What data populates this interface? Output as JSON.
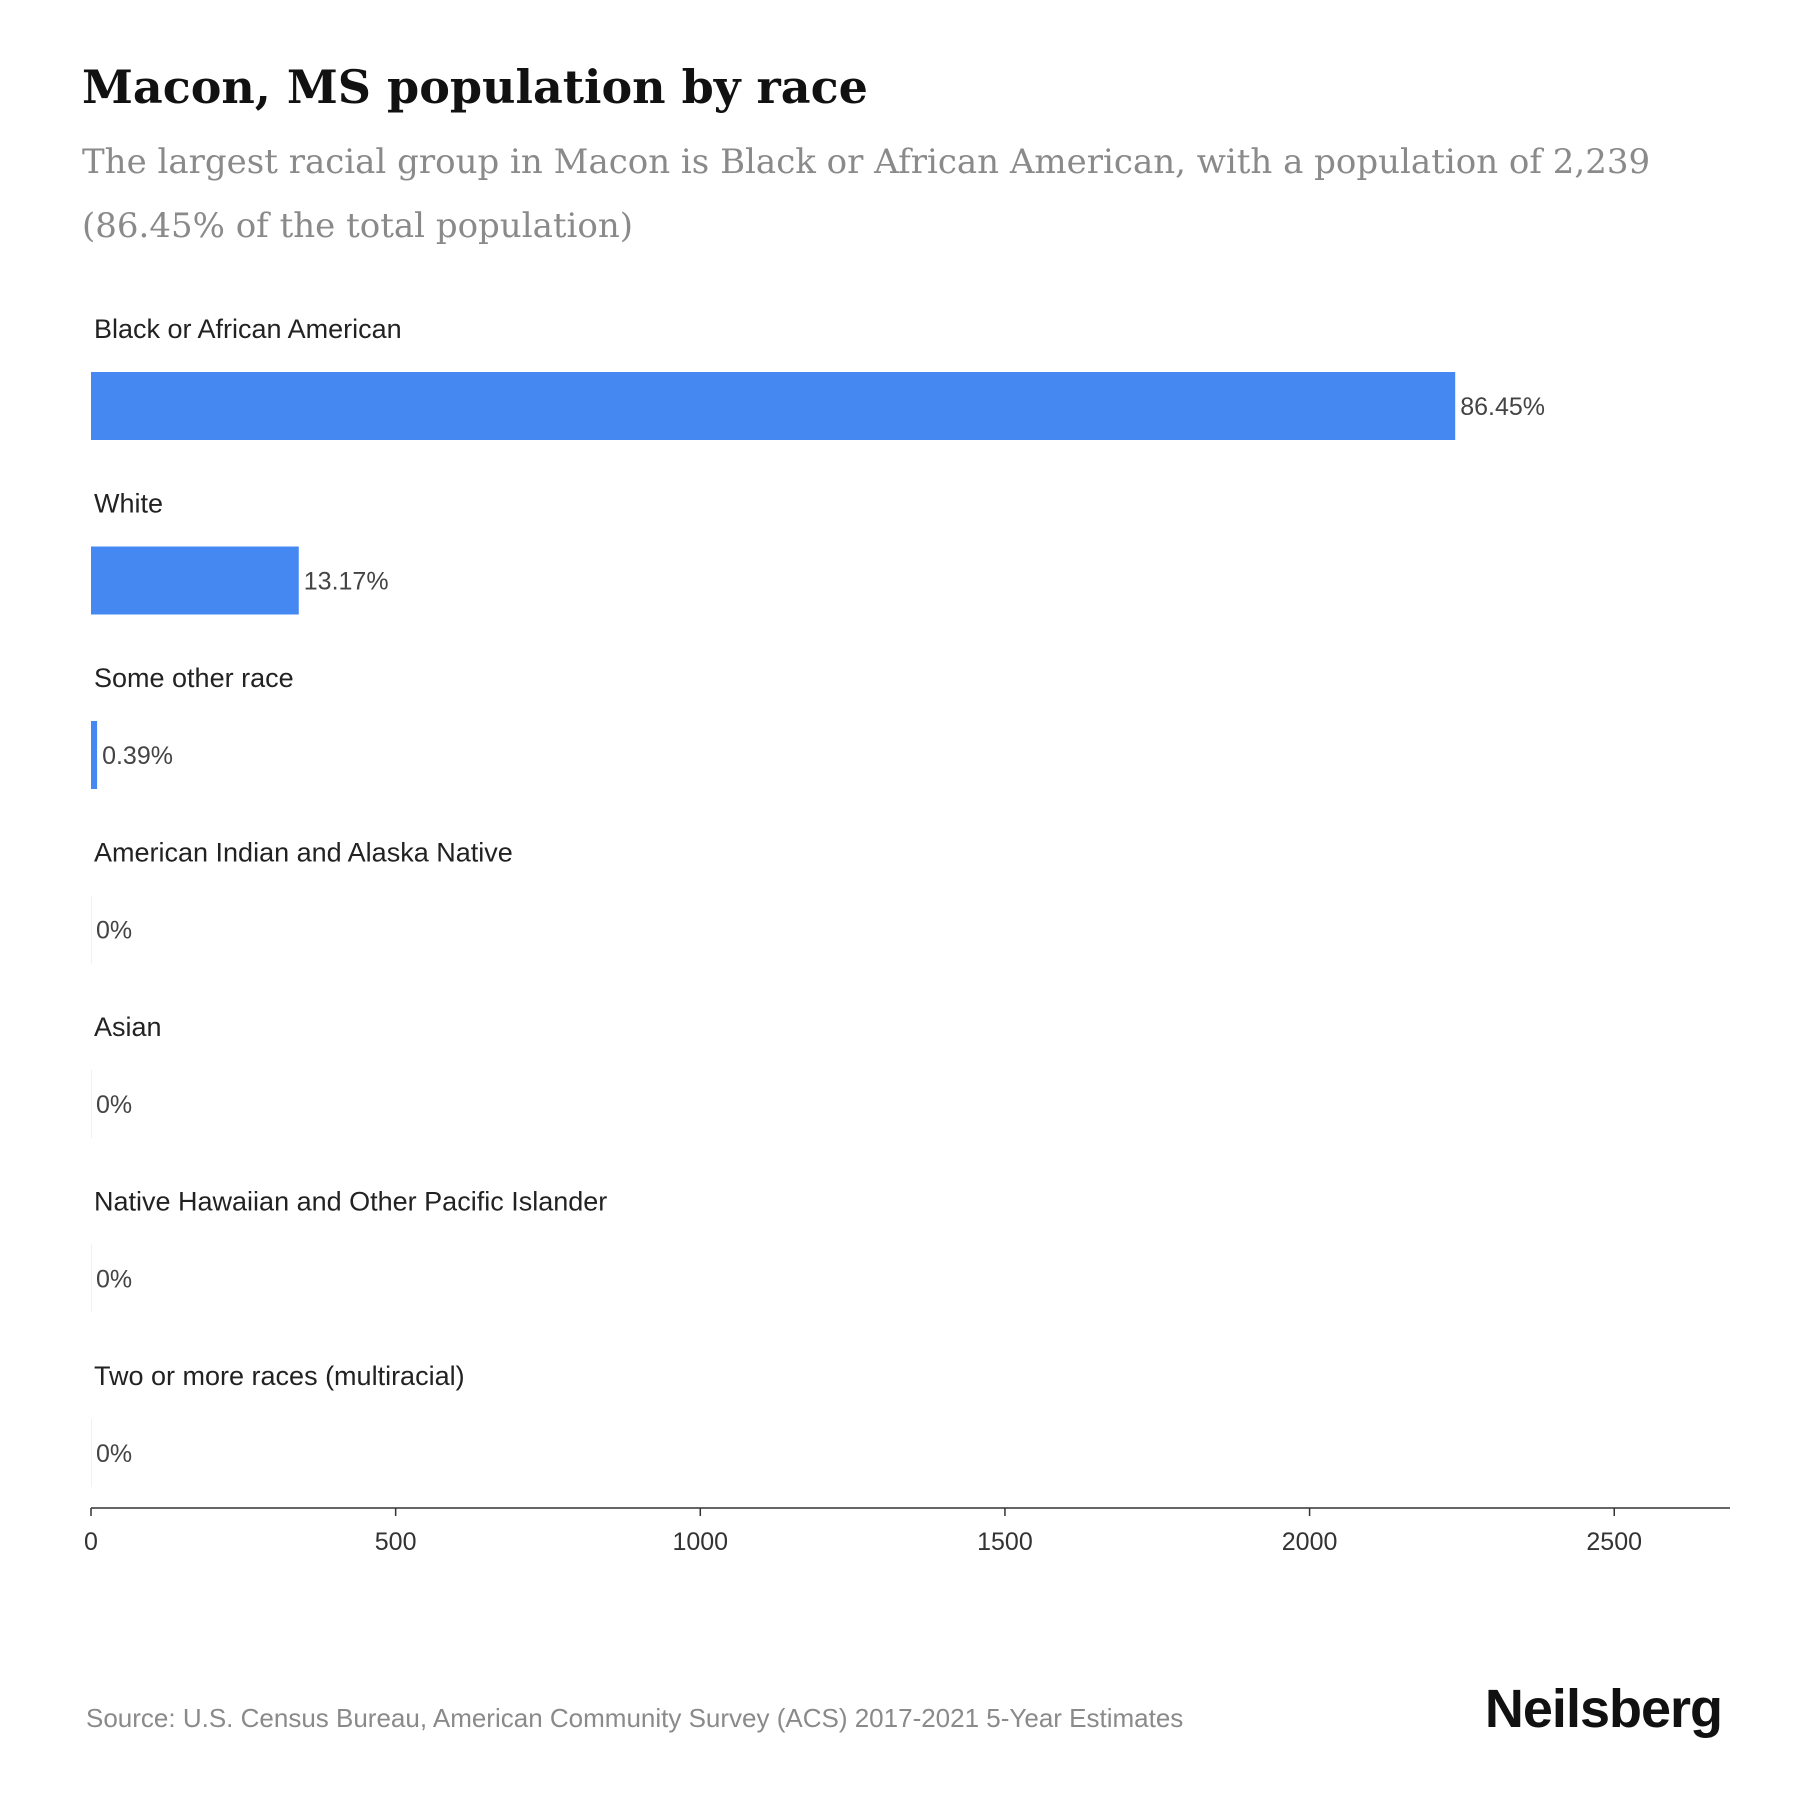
{
  "chart_data": {
    "type": "bar",
    "orientation": "horizontal",
    "title": "Macon, MS population by race",
    "subtitle": "The largest racial group in Macon is Black or African American, with a population of 2,239 (86.45% of the total population)",
    "categories": [
      "Black or African American",
      "White",
      "Some other race",
      "American Indian and Alaska Native",
      "Asian",
      "Native Hawaiian and Other Pacific Islander",
      "Two or more races (multiracial)"
    ],
    "values": [
      2239,
      341,
      10,
      0,
      0,
      0,
      0
    ],
    "value_labels": [
      "86.45%",
      "13.17%",
      "0.39%",
      "0%",
      "0%",
      "0%",
      "0%"
    ],
    "xlim": [
      0,
      2690
    ],
    "xticks": [
      0,
      500,
      1000,
      1500,
      2000,
      2500
    ],
    "xlabel": "",
    "ylabel": "",
    "grid": false,
    "bar_color": "#4688f1"
  },
  "footer": {
    "source": "Source: U.S. Census Bureau, American Community Survey (ACS) 2017-2021 5-Year Estimates",
    "brand": "Neilsberg"
  }
}
